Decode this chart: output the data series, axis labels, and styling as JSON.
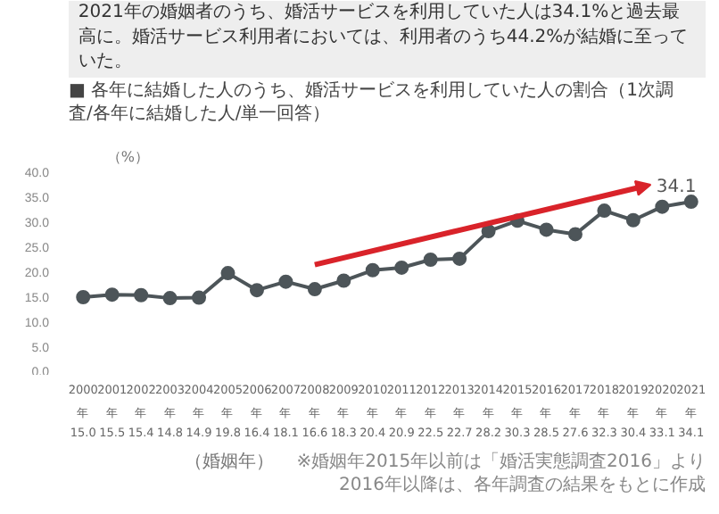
{
  "chart_data": {
    "type": "line",
    "title": "2021年の婚姻者のうち、婚活サービスを利用していた人は34.1%と過去最高に。婚活サービス利用者においては、利用者のうち44.2%が結婚に至っていた。",
    "subtitle": "■ 各年に結婚した人のうち、婚活サービスを利用していた人の割合（1次調査/各年に結婚した人/単一回答）",
    "ylabel": "（%）",
    "xlabel": "（婚姻年）",
    "categories": [
      "2000年",
      "2001年",
      "2002年",
      "2003年",
      "2004年",
      "2005年",
      "2006年",
      "2007年",
      "2008年",
      "2009年",
      "2010年",
      "2011年",
      "2012年",
      "2013年",
      "2014年",
      "2015年",
      "2016年",
      "2017年",
      "2018年",
      "2019年",
      "2020年",
      "2021年"
    ],
    "series": [
      {
        "color": "#4d5559",
        "values": [
          15.0,
          15.5,
          15.4,
          14.8,
          14.9,
          19.8,
          16.4,
          18.1,
          16.6,
          18.3,
          20.4,
          20.9,
          22.5,
          22.7,
          28.2,
          30.3,
          28.5,
          27.6,
          32.3,
          30.4,
          33.1,
          34.1
        ],
        "value_labels": [
          "15.0",
          "15.5",
          "15.4",
          "14.8",
          "14.9",
          "19.8",
          "16.4",
          "18.1",
          "16.6",
          "18.3",
          "20.4",
          "20.9",
          "22.5",
          "22.7",
          "28.2",
          "30.3",
          "28.5",
          "27.6",
          "32.3",
          "30.4",
          "33.1",
          "34.1"
        ]
      }
    ],
    "ylim": [
      0,
      40
    ],
    "yticks": [
      {
        "value": 0,
        "label": "0.0"
      },
      {
        "value": 5,
        "label": "5.0"
      },
      {
        "value": 10,
        "label": "10.0"
      },
      {
        "value": 15,
        "label": "15.0"
      },
      {
        "value": 20,
        "label": "20.0"
      },
      {
        "value": 25,
        "label": "25.0"
      },
      {
        "value": 30,
        "label": "30.0"
      },
      {
        "value": 35,
        "label": "35.0"
      },
      {
        "value": 40,
        "label": "40.0"
      }
    ],
    "marker": "circle",
    "line_style": "solid",
    "annotations": [
      "34.1",
      "※婚姻年2015年以前は「婚活実態調査2016」より\n2016年以降は、各年調査の結果をもとに作成"
    ]
  }
}
